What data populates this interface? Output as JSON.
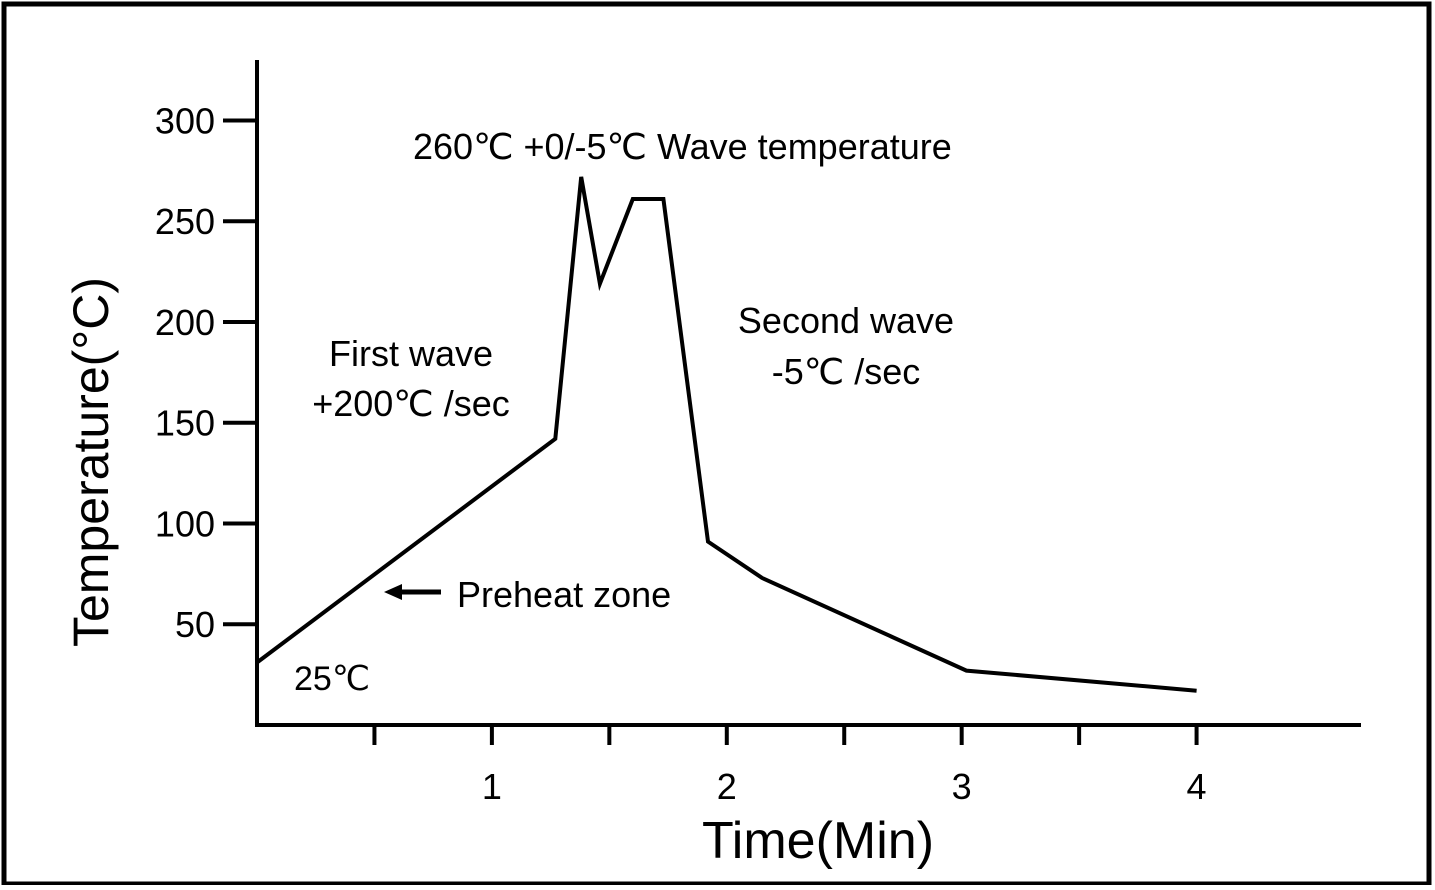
{
  "chart_data": {
    "type": "line",
    "xlabel": "Time(Min)",
    "ylabel": "Temperature(°C)",
    "xlim": [
      0,
      4.7
    ],
    "ylim": [
      0,
      330
    ],
    "x_ticks": [
      {
        "value": 0.5,
        "label": ""
      },
      {
        "value": 1,
        "label": "1"
      },
      {
        "value": 1.5,
        "label": ""
      },
      {
        "value": 2,
        "label": "2"
      },
      {
        "value": 2.5,
        "label": ""
      },
      {
        "value": 3,
        "label": "3"
      },
      {
        "value": 3.5,
        "label": ""
      },
      {
        "value": 4,
        "label": "4"
      }
    ],
    "y_ticks": [
      {
        "value": 50,
        "label": "50"
      },
      {
        "value": 100,
        "label": "100"
      },
      {
        "value": 150,
        "label": "150"
      },
      {
        "value": 200,
        "label": "200"
      },
      {
        "value": 250,
        "label": "250"
      },
      {
        "value": 300,
        "label": "300"
      }
    ],
    "grid": false,
    "series": [
      {
        "color": "#000000",
        "points": [
          {
            "x": 0.0,
            "y": 31
          },
          {
            "x": 1.27,
            "y": 142
          },
          {
            "x": 1.38,
            "y": 272
          },
          {
            "x": 1.46,
            "y": 219
          },
          {
            "x": 1.6,
            "y": 261
          },
          {
            "x": 1.73,
            "y": 261
          },
          {
            "x": 1.92,
            "y": 91
          },
          {
            "x": 2.15,
            "y": 73
          },
          {
            "x": 3.02,
            "y": 27
          },
          {
            "x": 4.0,
            "y": 17
          }
        ]
      }
    ],
    "annotations": {
      "wave_temp": "260℃ +0/-5℃ Wave temperature",
      "first_wave_line1": "First wave",
      "first_wave_line2": "+200℃ /sec",
      "second_wave_line1": "Second wave",
      "second_wave_line2": "-5℃ /sec",
      "preheat": "Preheat zone",
      "start_temp": "25℃"
    }
  }
}
